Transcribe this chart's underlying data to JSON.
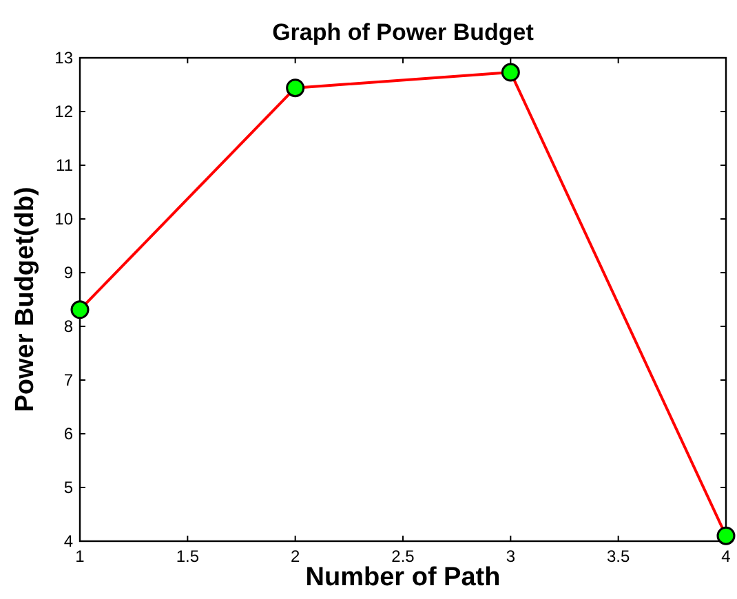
{
  "chart_data": {
    "type": "line",
    "title": "Graph of Power Budget",
    "xlabel": "Number of Path",
    "ylabel": "Power Budget(db)",
    "x": [
      1,
      2,
      3,
      4
    ],
    "series": [
      {
        "color": "#ff0000",
        "values": [
          8.31,
          12.44,
          12.73,
          4.1
        ]
      }
    ],
    "marker": "circle",
    "line_style": "solid",
    "grid": false,
    "xlim": [
      1,
      4
    ],
    "xticks": [
      1,
      1.5,
      2,
      2.5,
      3,
      3.5,
      4
    ],
    "ylim": [
      4,
      13
    ],
    "yticks": [
      4,
      5,
      6,
      7,
      8,
      9,
      10,
      11,
      12,
      13
    ]
  }
}
